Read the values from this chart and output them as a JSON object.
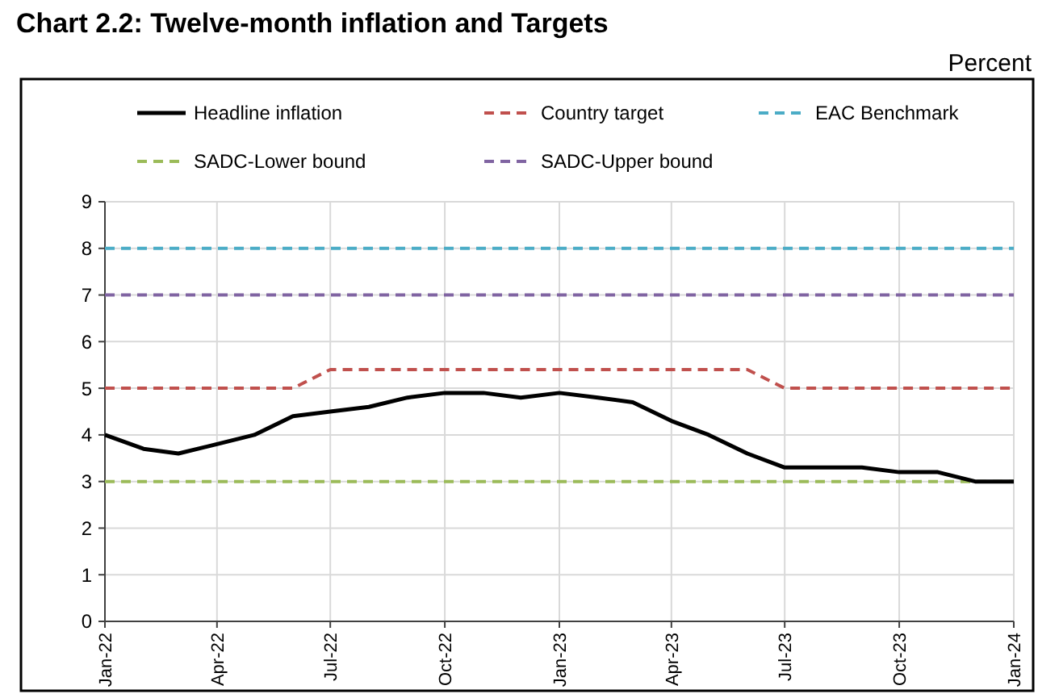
{
  "chart_data": {
    "type": "line",
    "title": "Chart 2.2: Twelve-month inflation and Targets",
    "ylabel": "Percent",
    "x": [
      "2022-01",
      "2022-02",
      "2022-03",
      "2022-04",
      "2022-05",
      "2022-06",
      "2022-07",
      "2022-08",
      "2022-09",
      "2022-10",
      "2022-11",
      "2022-12",
      "2023-01",
      "2023-02",
      "2023-03",
      "2023-04",
      "2023-05",
      "2023-06",
      "2023-07",
      "2023-08",
      "2023-09",
      "2023-10",
      "2023-11",
      "2023-12",
      "2024-01"
    ],
    "series": [
      {
        "name": "Headline inflation",
        "color": "#000000",
        "line_style": "solid",
        "values": [
          4.0,
          3.7,
          3.6,
          3.8,
          4.0,
          4.4,
          4.5,
          4.6,
          4.8,
          4.9,
          4.9,
          4.8,
          4.9,
          4.8,
          4.7,
          4.3,
          4.0,
          3.6,
          3.3,
          3.3,
          3.3,
          3.2,
          3.2,
          3.0,
          3.0
        ]
      },
      {
        "name": "Country target",
        "color": "#c0504d",
        "line_style": "dashed",
        "values": [
          5,
          5,
          5,
          5,
          5,
          5,
          5.4,
          5.4,
          5.4,
          5.4,
          5.4,
          5.4,
          5.4,
          5.4,
          5.4,
          5.4,
          5.4,
          5.4,
          5,
          5,
          5,
          5,
          5,
          5,
          5
        ]
      },
      {
        "name": "EAC Benchmark",
        "color": "#4bacc6",
        "line_style": "dashed",
        "values": [
          8,
          8,
          8,
          8,
          8,
          8,
          8,
          8,
          8,
          8,
          8,
          8,
          8,
          8,
          8,
          8,
          8,
          8,
          8,
          8,
          8,
          8,
          8,
          8,
          8
        ]
      },
      {
        "name": "SADC-Lower bound",
        "color": "#9bbb59",
        "line_style": "dashed",
        "values": [
          3,
          3,
          3,
          3,
          3,
          3,
          3,
          3,
          3,
          3,
          3,
          3,
          3,
          3,
          3,
          3,
          3,
          3,
          3,
          3,
          3,
          3,
          3,
          3,
          3
        ]
      },
      {
        "name": "SADC-Upper bound",
        "color": "#8064a2",
        "line_style": "dashed",
        "values": [
          7,
          7,
          7,
          7,
          7,
          7,
          7,
          7,
          7,
          7,
          7,
          7,
          7,
          7,
          7,
          7,
          7,
          7,
          7,
          7,
          7,
          7,
          7,
          7,
          7
        ]
      }
    ],
    "xlim": [
      "2022-01",
      "2024-01"
    ],
    "xticks": [
      {
        "value": "2022-01",
        "label": "Jan-22"
      },
      {
        "value": "2022-04",
        "label": "Apr-22"
      },
      {
        "value": "2022-07",
        "label": "Jul-22"
      },
      {
        "value": "2022-10",
        "label": "Oct-22"
      },
      {
        "value": "2023-01",
        "label": "Jan-23"
      },
      {
        "value": "2023-04",
        "label": "Apr-23"
      },
      {
        "value": "2023-07",
        "label": "Jul-23"
      },
      {
        "value": "2023-10",
        "label": "Oct-23"
      },
      {
        "value": "2024-01",
        "label": "Jan-24"
      }
    ],
    "ylim": [
      0,
      9
    ],
    "yticks": [
      0,
      1,
      2,
      3,
      4,
      5,
      6,
      7,
      8,
      9
    ],
    "grid": true,
    "legend": "top",
    "marker": "none"
  }
}
